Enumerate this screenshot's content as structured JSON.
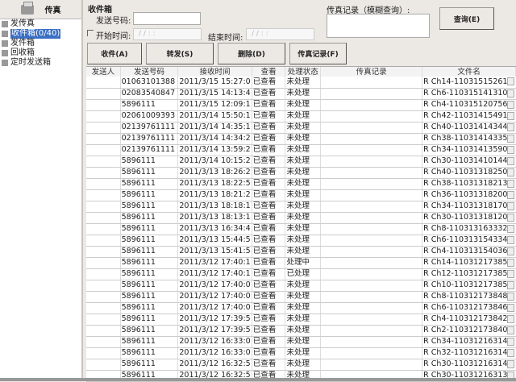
{
  "sidebar": {
    "title": "传真",
    "items": [
      {
        "label": "发传真",
        "icon": "send-fax-icon"
      },
      {
        "label": "收件箱(0/40)",
        "icon": "inbox-icon",
        "selected": true
      },
      {
        "label": "发件箱",
        "icon": "outbox-icon"
      },
      {
        "label": "回收箱",
        "icon": "recycle-icon"
      },
      {
        "label": "定时发送箱",
        "icon": "scheduled-icon"
      }
    ]
  },
  "filter": {
    "title": "收件箱",
    "sender_label": "发送号码:",
    "sender_value": "",
    "start_label": "开始时间:",
    "start_value": "/ /   : :",
    "end_label": "结束时间:",
    "end_value": "/ /   : :",
    "record_label": "传真记录（模糊查询）:",
    "query_btn": "查询(E)"
  },
  "toolbar": {
    "receive": "收件(A)",
    "forward": "转发(S)",
    "delete": "删除(D)",
    "record": "传真记录(F)"
  },
  "table": {
    "headers": [
      "发送人",
      "发送号码",
      "接收时间",
      "查看",
      "处理状态",
      "传真记录",
      "文件名"
    ],
    "rows": [
      [
        "",
        "01063101388",
        "2011/3/15 15:27:0",
        "已查看",
        "未处理",
        "",
        "R Ch14-11031515261"
      ],
      [
        "",
        "02083540847",
        "2011/3/15 14:13:4",
        "已查看",
        "未处理",
        "",
        "R Ch6-110315141310"
      ],
      [
        "",
        "5896111",
        "2011/3/15 12:09:1",
        "已查看",
        "未处理",
        "",
        "R Ch4-110315120756"
      ],
      [
        "",
        "02061009393",
        "2011/3/14 15:50:1",
        "已查看",
        "未处理",
        "",
        "R Ch42-11031415491"
      ],
      [
        "",
        "02139761111",
        "2011/3/14 14:35:1",
        "已查看",
        "未处理",
        "",
        "R Ch40-11031414344"
      ],
      [
        "",
        "02139761111",
        "2011/3/14 14:34:2",
        "已查看",
        "未处理",
        "",
        "R Ch38-11031414335"
      ],
      [
        "",
        "02139761111",
        "2011/3/14 13:59:2",
        "已查看",
        "未处理",
        "",
        "R Ch34-11031413590"
      ],
      [
        "",
        "5896111",
        "2011/3/14 10:15:2",
        "已查看",
        "未处理",
        "",
        "R Ch30-11031410144"
      ],
      [
        "",
        "5896111",
        "2011/3/13 18:26:2",
        "已查看",
        "未处理",
        "",
        "R Ch40-11031318250"
      ],
      [
        "",
        "5896111",
        "2011/3/13 18:22:5",
        "已查看",
        "未处理",
        "",
        "R Ch38-11031318213"
      ],
      [
        "",
        "5896111",
        "2011/3/13 18:21:2",
        "已查看",
        "未处理",
        "",
        "R Ch36-11031318200"
      ],
      [
        "",
        "5896111",
        "2011/3/13 18:18:1",
        "已查看",
        "未处理",
        "",
        "R Ch34-11031318170"
      ],
      [
        "",
        "5896111",
        "2011/3/13 18:13:1",
        "已查看",
        "未处理",
        "",
        "R Ch30-11031318120"
      ],
      [
        "",
        "5896111",
        "2011/3/13 16:34:4",
        "已查看",
        "未处理",
        "",
        "R Ch8-110313163332"
      ],
      [
        "",
        "5896111",
        "2011/3/13 15:44:5",
        "已查看",
        "未处理",
        "",
        "R Ch6-110313154334"
      ],
      [
        "",
        "5896111",
        "2011/3/13 15:41:5",
        "已查看",
        "未处理",
        "",
        "R Ch4-110313154036"
      ],
      [
        "",
        "5896111",
        "2011/3/12 17:40:1",
        "已查看",
        "处理中",
        "",
        "R Ch14-11031217385"
      ],
      [
        "",
        "5896111",
        "2011/3/12 17:40:1",
        "已查看",
        "已处理",
        "",
        "R Ch12-11031217385"
      ],
      [
        "",
        "5896111",
        "2011/3/12 17:40:0",
        "已查看",
        "未处理",
        "",
        "R Ch10-11031217385"
      ],
      [
        "",
        "5896111",
        "2011/3/12 17:40:0",
        "已查看",
        "未处理",
        "",
        "R Ch8-110312173848"
      ],
      [
        "",
        "5896111",
        "2011/3/12 17:40:0",
        "已查看",
        "未处理",
        "",
        "R Ch6-110312173846"
      ],
      [
        "",
        "5896111",
        "2011/3/12 17:39:5",
        "已查看",
        "未处理",
        "",
        "R Ch4-110312173842"
      ],
      [
        "",
        "5896111",
        "2011/3/12 17:39:5",
        "已查看",
        "未处理",
        "",
        "R Ch2-110312173840"
      ],
      [
        "",
        "5896111",
        "2011/3/12 16:33:0",
        "已查看",
        "未处理",
        "",
        "R Ch34-11031216314"
      ],
      [
        "",
        "5896111",
        "2011/3/12 16:33:0",
        "已查看",
        "未处理",
        "",
        "R Ch32-11031216314"
      ],
      [
        "",
        "5896111",
        "2011/3/12 16:32:5",
        "已查看",
        "未处理",
        "",
        "R Ch30-11031216314"
      ],
      [
        "",
        "5896111",
        "2011/3/12 16:32:5",
        "已查看",
        "未处理",
        "",
        "R Ch30-11031216313"
      ]
    ]
  }
}
